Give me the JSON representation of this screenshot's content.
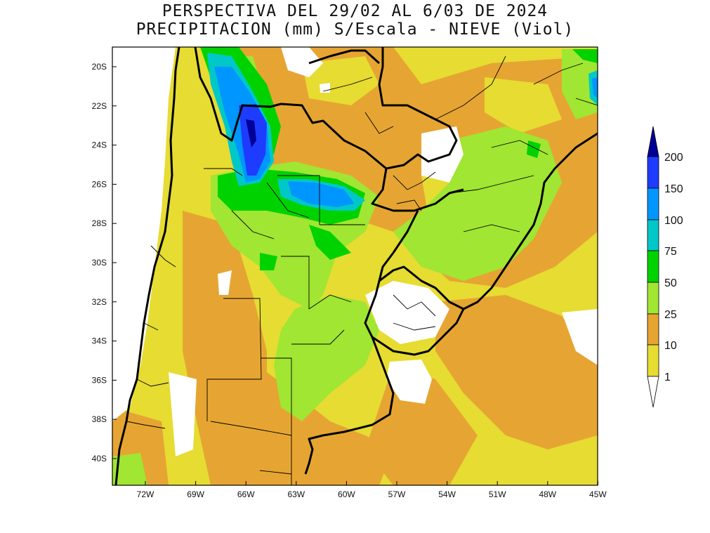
{
  "title": {
    "line1": "PERSPECTIVA DEL 29/02 AL 6/03 DE 2024",
    "line2": "PRECIPITACION (mm) S/Escala - NIEVE (Viol)"
  },
  "axes": {
    "lat_labels": [
      "20S",
      "22S",
      "24S",
      "26S",
      "28S",
      "30S",
      "32S",
      "34S",
      "36S",
      "38S",
      "40S"
    ],
    "lon_labels": [
      "72W",
      "69W",
      "66W",
      "63W",
      "60W",
      "57W",
      "54W",
      "51W",
      "48W",
      "45W"
    ]
  },
  "legend": {
    "levels": [
      "200",
      "150",
      "100",
      "75",
      "50",
      "25",
      "10",
      "1"
    ],
    "colors": {
      "gt200": "#000096",
      "c150_200": "#1e3cff",
      "c100_150": "#0096ff",
      "c75_100": "#00c8c8",
      "c50_75": "#00d200",
      "c25_50": "#a0e632",
      "c10_25": "#e6a532",
      "c1_10": "#e6dc32",
      "lt1": "#ffffff"
    }
  }
}
